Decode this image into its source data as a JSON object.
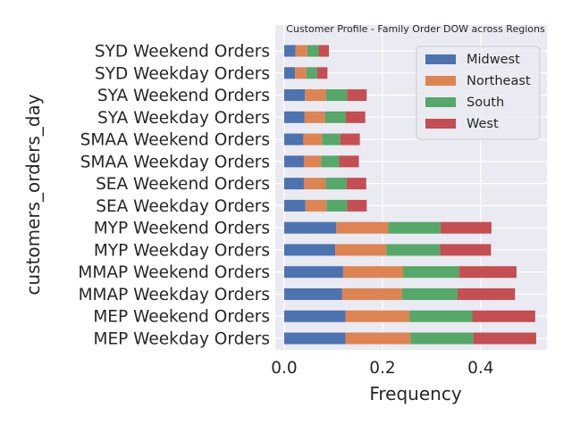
{
  "chart_data": {
    "type": "bar",
    "orientation": "horizontal",
    "stacked": true,
    "title": "Customer Profile - Family Order DOW across Regions",
    "xlabel": "Frequency",
    "ylabel": "customers_orders_day",
    "xlim": [
      0,
      0.535
    ],
    "xticks": [
      "0.0",
      "0.2",
      "0.4"
    ],
    "xtick_values": [
      0,
      0.2,
      0.4
    ],
    "grid": true,
    "legend_position": "top-right",
    "categories": [
      "MEP Weekday Orders",
      "MEP Weekend Orders",
      "MMAP Weekday Orders",
      "MMAP Weekend Orders",
      "MYP Weekday Orders",
      "MYP Weekend Orders",
      "SEA Weekday Orders",
      "SEA Weekend Orders",
      "SMAA Weekday Orders",
      "SMAA Weekend Orders",
      "SYA Weekday Orders",
      "SYA Weekend Orders",
      "SYD Weekday Orders",
      "SYD Weekend Orders"
    ],
    "series": [
      {
        "name": "Midwest",
        "color": "#4c72b0",
        "values": [
          0.125,
          0.125,
          0.118,
          0.12,
          0.104,
          0.106,
          0.043,
          0.04,
          0.04,
          0.039,
          0.041,
          0.042,
          0.022,
          0.023
        ]
      },
      {
        "name": "Northeast",
        "color": "#dd8452",
        "values": [
          0.132,
          0.13,
          0.122,
          0.122,
          0.104,
          0.106,
          0.043,
          0.044,
          0.035,
          0.038,
          0.042,
          0.043,
          0.023,
          0.024
        ]
      },
      {
        "name": "South",
        "color": "#55a868",
        "values": [
          0.128,
          0.128,
          0.113,
          0.114,
          0.109,
          0.106,
          0.042,
          0.043,
          0.037,
          0.037,
          0.042,
          0.043,
          0.022,
          0.023
        ]
      },
      {
        "name": "West",
        "color": "#c44e52",
        "values": [
          0.128,
          0.128,
          0.117,
          0.117,
          0.104,
          0.104,
          0.04,
          0.04,
          0.04,
          0.04,
          0.04,
          0.04,
          0.021,
          0.021
        ]
      }
    ]
  }
}
